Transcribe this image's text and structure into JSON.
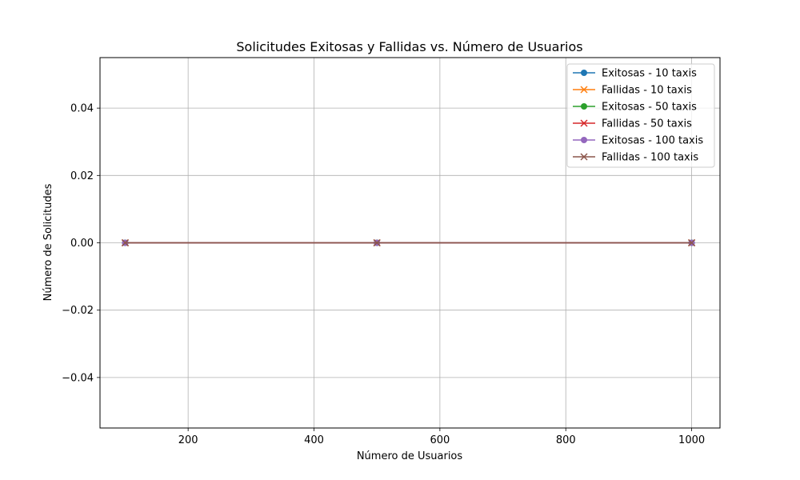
{
  "chart_data": {
    "type": "line",
    "title": "Solicitudes Exitosas y Fallidas vs. Número de Usuarios",
    "xlabel": "Número de Usuarios",
    "ylabel": "Número de Solicitudes",
    "x": [
      100,
      500,
      1000
    ],
    "xlim": [
      60,
      1045
    ],
    "ylim": [
      -0.055,
      0.055
    ],
    "xticks": [
      200,
      400,
      600,
      800,
      1000
    ],
    "xtick_labels": [
      "200",
      "400",
      "600",
      "800",
      "1000"
    ],
    "yticks": [
      -0.04,
      -0.02,
      0.0,
      0.02,
      0.04
    ],
    "ytick_labels": [
      "−0.04",
      "−0.02",
      "0.00",
      "0.02",
      "0.04"
    ],
    "grid": true,
    "legend_position": "top-right",
    "series": [
      {
        "name": "Exitosas - 10 taxis",
        "values": [
          0,
          0,
          0
        ],
        "color": "#1f77b4",
        "marker": "circle"
      },
      {
        "name": "Fallidas - 10 taxis",
        "values": [
          0,
          0,
          0
        ],
        "color": "#ff7f0e",
        "marker": "x"
      },
      {
        "name": "Exitosas - 50 taxis",
        "values": [
          0,
          0,
          0
        ],
        "color": "#2ca02c",
        "marker": "circle"
      },
      {
        "name": "Fallidas - 50 taxis",
        "values": [
          0,
          0,
          0
        ],
        "color": "#d62728",
        "marker": "x"
      },
      {
        "name": "Exitosas - 100 taxis",
        "values": [
          0,
          0,
          0
        ],
        "color": "#9467bd",
        "marker": "circle"
      },
      {
        "name": "Fallidas - 100 taxis",
        "values": [
          0,
          0,
          0
        ],
        "color": "#8c564b",
        "marker": "x"
      }
    ]
  }
}
